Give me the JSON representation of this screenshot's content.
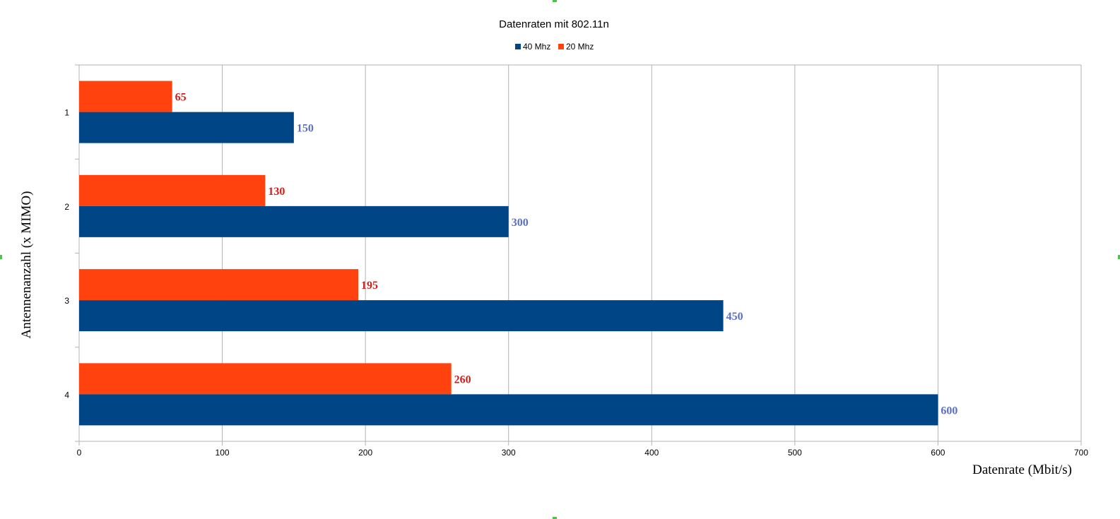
{
  "chart_data": {
    "type": "bar",
    "orientation": "horizontal",
    "title": "Datenraten mit 802.11n",
    "xlabel": "Datenrate (Mbit/s)",
    "ylabel": "Antennenanzahl (x MIMO)",
    "categories": [
      "1",
      "2",
      "3",
      "4"
    ],
    "xlim": [
      0,
      700
    ],
    "x_ticks": [
      0,
      100,
      200,
      300,
      400,
      500,
      600,
      700
    ],
    "grid": true,
    "legend_position": "top",
    "series": [
      {
        "name": "40 Mhz",
        "values": [
          150,
          300,
          450,
          600
        ],
        "color": "#004586",
        "label_color": "#5b6fc4"
      },
      {
        "name": "20 Mhz",
        "values": [
          65,
          130,
          195,
          260
        ],
        "color": "#ff420e",
        "label_color": "#c9211e"
      }
    ]
  }
}
